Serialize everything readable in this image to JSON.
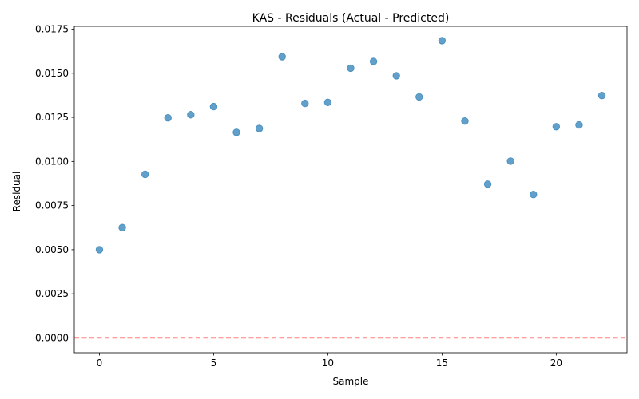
{
  "chart_data": {
    "type": "scatter",
    "title": "KAS - Residuals (Actual - Predicted)",
    "xlabel": "Sample",
    "ylabel": "Residual",
    "xlim": [
      -1.1,
      23.1
    ],
    "ylim": [
      -0.00084,
      0.01766
    ],
    "xticks": [
      0,
      5,
      10,
      15,
      20
    ],
    "xtick_labels": [
      "0",
      "5",
      "10",
      "15",
      "20"
    ],
    "yticks": [
      0,
      0.0025,
      0.005,
      0.0075,
      0.01,
      0.0125,
      0.015,
      0.0175
    ],
    "ytick_labels": [
      "0.0000",
      "0.0025",
      "0.0050",
      "0.0075",
      "0.0100",
      "0.0125",
      "0.0150",
      "0.0175"
    ],
    "grid": false,
    "legend": "none",
    "point_color": "#1f77b4",
    "point_opacity": 0.7,
    "reference_line": {
      "y": 0,
      "color": "#ff0000",
      "style": "dashed"
    },
    "series": [
      {
        "x": [
          0,
          1,
          2,
          3,
          4,
          5,
          6,
          7,
          8,
          9,
          10,
          11,
          12,
          13,
          14,
          15,
          16,
          17,
          18,
          19,
          20,
          21,
          22
        ],
        "y": [
          0.005,
          0.00625,
          0.00927,
          0.01247,
          0.01265,
          0.01311,
          0.01165,
          0.01187,
          0.01594,
          0.01329,
          0.01335,
          0.01529,
          0.01567,
          0.01486,
          0.01366,
          0.01685,
          0.01229,
          0.00871,
          0.01002,
          0.00813,
          0.01197,
          0.01207,
          0.01374
        ]
      }
    ]
  }
}
